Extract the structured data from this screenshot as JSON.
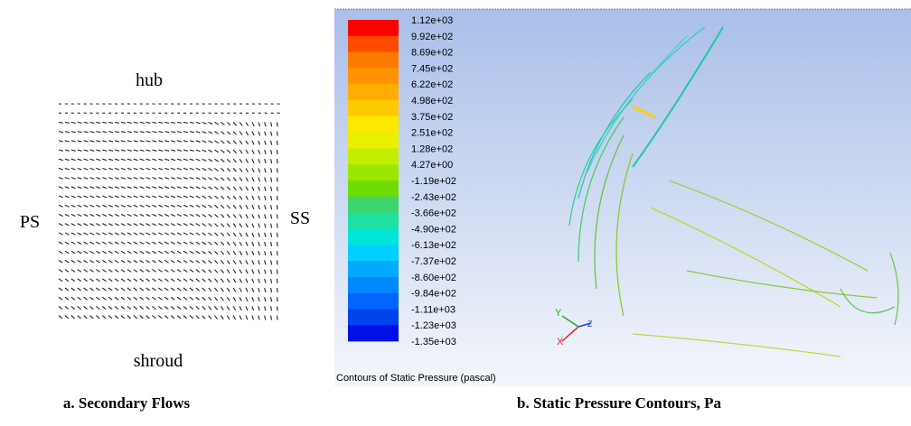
{
  "panel_a": {
    "top_label": "hub",
    "left_label": "PS",
    "right_label": "SS",
    "bottom_label": "shroud",
    "caption": "a. Secondary Flows"
  },
  "panel_b": {
    "legend": {
      "labels": [
        "1.12e+03",
        "9.92e+02",
        "8.69e+02",
        "7.45e+02",
        "6.22e+02",
        "4.98e+02",
        "3.75e+02",
        "2.51e+02",
        "1.28e+02",
        "4.27e+00",
        "-1.19e+02",
        "-2.43e+02",
        "-3.66e+02",
        "-4.90e+02",
        "-6.13e+02",
        "-7.37e+02",
        "-8.60e+02",
        "-9.84e+02",
        "-1.11e+03",
        "-1.23e+03",
        "-1.35e+03"
      ],
      "colors": [
        "#ff0000",
        "#ff4a00",
        "#ff7a00",
        "#ff9400",
        "#ffae00",
        "#ffca00",
        "#ffe800",
        "#e8f000",
        "#c4ee00",
        "#9ce600",
        "#6ede00",
        "#3ed66c",
        "#1ee0a0",
        "#00e6d8",
        "#00cfff",
        "#00aaff",
        "#0088ff",
        "#0066ff",
        "#0044ee",
        "#0010e6"
      ]
    },
    "axis_labels": [
      "X",
      "Y",
      "Z"
    ],
    "footer": "Contours of Static Pressure (pascal)",
    "caption": "b. Static Pressure Contours, Pa"
  }
}
